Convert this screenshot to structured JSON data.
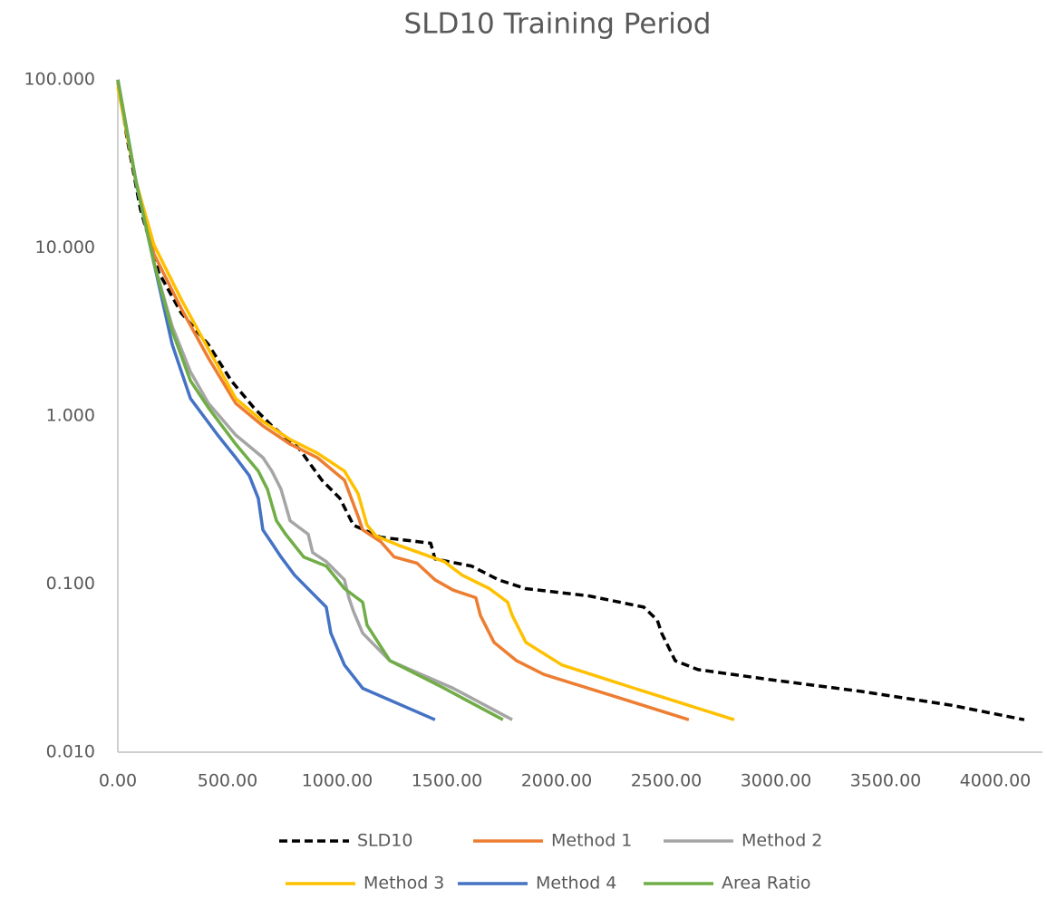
{
  "chart_data": {
    "type": "line",
    "title": "SLD10 Training Period",
    "xlim": [
      0,
      4215
    ],
    "xticks": [
      {
        "value": 0,
        "label": "0.00"
      },
      {
        "value": 500,
        "label": "500.00"
      },
      {
        "value": 1000,
        "label": "1000.00"
      },
      {
        "value": 1500,
        "label": "1500.00"
      },
      {
        "value": 2000,
        "label": "2000.00"
      },
      {
        "value": 2500,
        "label": "2500.00"
      },
      {
        "value": 3000,
        "label": "3000.00"
      },
      {
        "value": 3500,
        "label": "3500.00"
      },
      {
        "value": 4000,
        "label": "4000.00"
      }
    ],
    "ylim": [
      0.01,
      100
    ],
    "yticks": [
      {
        "value": 0.01,
        "label": "0.010"
      },
      {
        "value": 0.1,
        "label": "0.100"
      },
      {
        "value": 1,
        "label": "1.000"
      },
      {
        "value": 10,
        "label": "10.000"
      },
      {
        "value": 100,
        "label": "100.000"
      }
    ],
    "y_log_scale": true,
    "grid": false,
    "legend": "bottom",
    "series": [
      {
        "name": "SLD10",
        "color": "#000000",
        "dashed": true,
        "x": [
          0,
          41,
          103,
          186,
          289,
          413,
          517,
          620,
          702,
          826,
          930,
          1012,
          1074,
          1198,
          1426,
          1446,
          1612,
          1735,
          1859,
          2149,
          2397,
          2459,
          2479,
          2541,
          2645,
          2975,
          3388,
          3802,
          4132
        ],
        "values": [
          100,
          45.8,
          17.0,
          7.16,
          4.1,
          2.66,
          1.62,
          1.12,
          0.873,
          0.64,
          0.415,
          0.324,
          0.224,
          0.19,
          0.175,
          0.141,
          0.128,
          0.106,
          0.094,
          0.085,
          0.073,
          0.061,
          0.051,
          0.035,
          0.031,
          0.027,
          0.023,
          0.019,
          0.0156
        ]
      },
      {
        "name": "Method 1",
        "color": "#ed7d31",
        "x": [
          0,
          83,
          165,
          289,
          413,
          537,
          661,
          785,
          909,
          1033,
          1095,
          1116,
          1198,
          1260,
          1364,
          1446,
          1529,
          1632,
          1653,
          1715,
          1818,
          1942,
          2273,
          2603
        ],
        "values": [
          96,
          24.7,
          9.17,
          4.36,
          2.21,
          1.19,
          0.873,
          0.681,
          0.566,
          0.415,
          0.253,
          0.21,
          0.179,
          0.145,
          0.133,
          0.106,
          0.092,
          0.083,
          0.065,
          0.045,
          0.035,
          0.029,
          0.0213,
          0.0156
        ]
      },
      {
        "name": "Method 2",
        "color": "#a5a5a5",
        "x": [
          0,
          83,
          165,
          248,
          331,
          413,
          537,
          661,
          702,
          744,
          785,
          868,
          888,
          950,
          1033,
          1053,
          1074,
          1116,
          1240,
          1529,
          1798
        ],
        "values": [
          100,
          24.7,
          8.11,
          3.41,
          1.83,
          1.19,
          0.771,
          0.566,
          0.47,
          0.367,
          0.238,
          0.198,
          0.154,
          0.136,
          0.106,
          0.083,
          0.069,
          0.051,
          0.035,
          0.024,
          0.0156
        ]
      },
      {
        "name": "Method 3",
        "color": "#ffc000",
        "x": [
          0,
          83,
          165,
          289,
          413,
          537,
          661,
          785,
          909,
          1033,
          1095,
          1136,
          1178,
          1281,
          1488,
          1570,
          1694,
          1777,
          1798,
          1860,
          2025,
          2355,
          2810
        ],
        "values": [
          90.6,
          24.7,
          10.4,
          4.94,
          2.5,
          1.27,
          0.929,
          0.725,
          0.602,
          0.47,
          0.345,
          0.224,
          0.193,
          0.17,
          0.136,
          0.113,
          0.094,
          0.078,
          0.065,
          0.045,
          0.033,
          0.024,
          0.0156
        ]
      },
      {
        "name": "Method 4",
        "color": "#4472c4",
        "x": [
          0,
          83,
          165,
          248,
          331,
          455,
          537,
          599,
          640,
          661,
          702,
          744,
          806,
          888,
          950,
          971,
          1033,
          1116,
          1446
        ],
        "values": [
          100,
          24.7,
          8.11,
          2.66,
          1.27,
          0.771,
          0.566,
          0.442,
          0.324,
          0.21,
          0.175,
          0.145,
          0.113,
          0.088,
          0.073,
          0.051,
          0.033,
          0.024,
          0.0156
        ]
      },
      {
        "name": "Area Ratio",
        "color": "#70ad47",
        "x": [
          0,
          83,
          165,
          248,
          331,
          413,
          537,
          640,
          682,
          723,
          765,
          847,
          950,
          1033,
          1116,
          1136,
          1240,
          1488,
          1756
        ],
        "values": [
          100,
          24.7,
          8.11,
          3.2,
          1.62,
          1.12,
          0.681,
          0.47,
          0.367,
          0.238,
          0.198,
          0.145,
          0.128,
          0.094,
          0.078,
          0.057,
          0.035,
          0.024,
          0.0156
        ]
      }
    ]
  }
}
